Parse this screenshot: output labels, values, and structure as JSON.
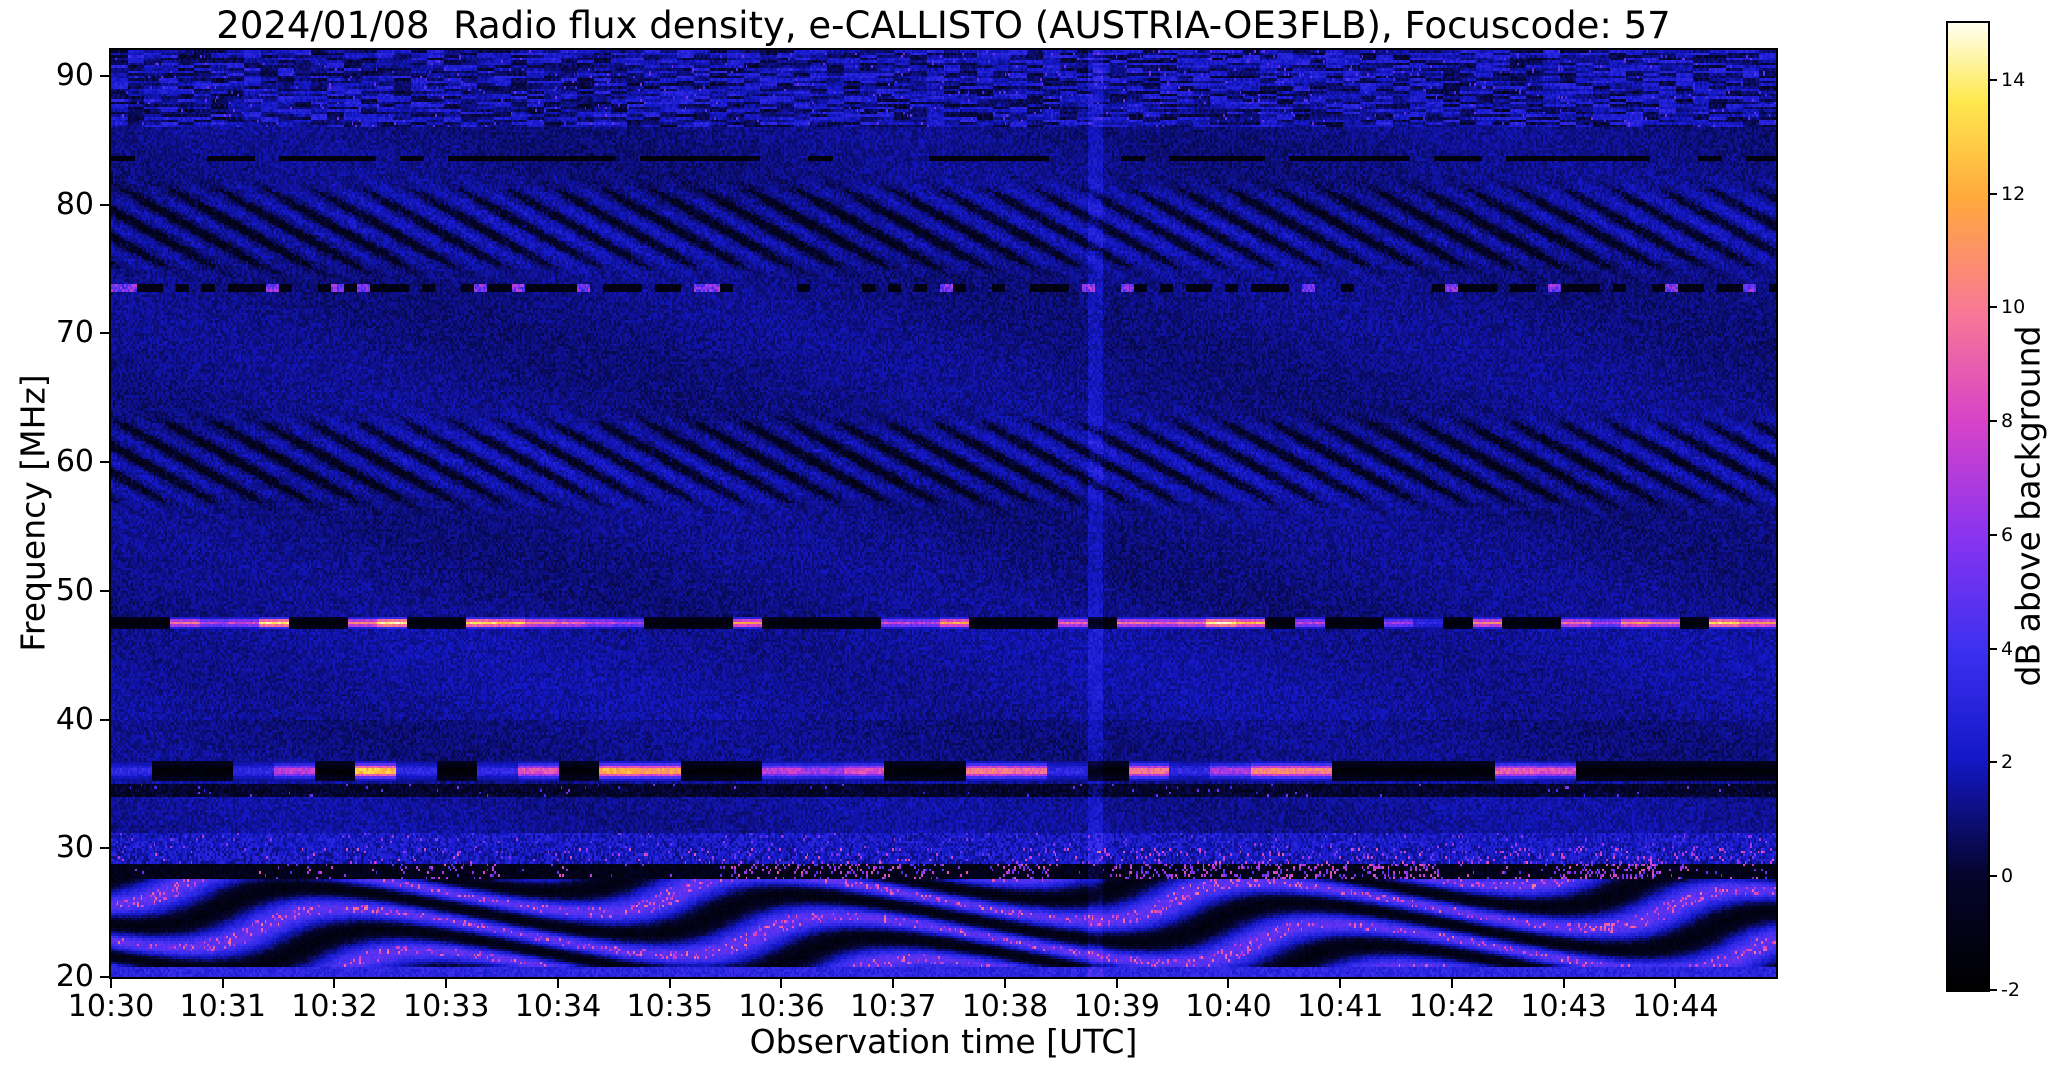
{
  "chart_data": {
    "type": "heatmap",
    "title": "2024/01/08  Radio flux density, e-CALLISTO (AUSTRIA-OE3FLB), Focuscode: 57",
    "xlabel": "Observation time [UTC]",
    "ylabel": "Frequency [MHz]",
    "meta": {
      "date": "2024/01/08",
      "instrument": "e-CALLISTO",
      "station": "AUSTRIA-OE3FLB",
      "focuscode": 57
    },
    "x_ticks": [
      "10:30",
      "10:31",
      "10:32",
      "10:33",
      "10:34",
      "10:35",
      "10:36",
      "10:37",
      "10:38",
      "10:39",
      "10:40",
      "10:41",
      "10:42",
      "10:43",
      "10:44"
    ],
    "y_ticks": [
      20,
      30,
      40,
      50,
      60,
      70,
      80,
      90
    ],
    "x_range_utc": [
      "10:30:00",
      "10:44:54"
    ],
    "duration_minutes": 14.9,
    "y_range_mhz": [
      20,
      92
    ],
    "value_range_db": [
      -2,
      15
    ],
    "grid": false,
    "legend": "none",
    "colorbar": {
      "label": "dB above background",
      "position": "right",
      "ticks": [
        -2,
        0,
        2,
        4,
        6,
        8,
        10,
        12,
        14
      ]
    },
    "colormap_stops": [
      {
        "pos": 0.0,
        "color": "#000000"
      },
      {
        "pos": 0.12,
        "color": "#05052e"
      },
      {
        "pos": 0.24,
        "color": "#1418c8"
      },
      {
        "pos": 0.35,
        "color": "#3c30f0"
      },
      {
        "pos": 0.47,
        "color": "#8a34f0"
      },
      {
        "pos": 0.59,
        "color": "#d944c8"
      },
      {
        "pos": 0.7,
        "color": "#f87896"
      },
      {
        "pos": 0.82,
        "color": "#ffaa3c"
      },
      {
        "pos": 0.92,
        "color": "#ffe950"
      },
      {
        "pos": 1.0,
        "color": "#fffff0"
      }
    ],
    "background_level_db": 1.0,
    "features": [
      {
        "kind": "diagonal_interference",
        "freq_lo_mhz": 55.5,
        "freq_hi_mhz": 64.5,
        "description": "diagonal striping interference band"
      },
      {
        "kind": "diagonal_interference",
        "freq_lo_mhz": 73.8,
        "freq_hi_mhz": 82.5,
        "description": "diagonal striping interference band"
      },
      {
        "kind": "intermittent_rfi_line",
        "freq_mhz": 47.5,
        "halfwidth_mhz": 0.5,
        "block_cols": 16,
        "dark_fraction": 0.42,
        "peak_db": 14,
        "description": "strong intermittent RFI carrier, bright orange segments alternating with black gaps"
      },
      {
        "kind": "intermittent_rfi_line",
        "freq_mhz": 36.0,
        "halfwidth_mhz": 0.75,
        "block_cols": 22,
        "dark_fraction": 0.38,
        "peak_db": 13,
        "description": "strong intermittent RFI band, bright orange segments alternating with black gaps"
      },
      {
        "kind": "dark_band",
        "freq_mhz": 34.5,
        "halfwidth_mhz": 0.45,
        "description": "dark suppressed band with sparse speckles"
      },
      {
        "kind": "dashed_dark_line",
        "freq_mhz": 83.6,
        "halfwidth_mhz": 0.22,
        "description": "dashed dark horizontal line"
      },
      {
        "kind": "dotted_line",
        "freq_mhz": 73.5,
        "halfwidth_mhz": 0.22,
        "description": "dotted dark line with occasional bright dots"
      },
      {
        "kind": "noise_band",
        "freq_lo_mhz": 86.0,
        "freq_hi_mhz": 92.0,
        "description": "speckled horizontal noise rows near top"
      },
      {
        "kind": "ionospheric_wavy_band",
        "freq_lo_mhz": 20.0,
        "freq_hi_mhz": 31.2,
        "description": "wavy black/blue shortwave interference with pink speckle clusters around 27-29 MHz, denser toward later times"
      },
      {
        "kind": "faint_vertical_line",
        "time_min": 8.8,
        "description": "faint brighter vertical column near 10:39"
      }
    ]
  }
}
